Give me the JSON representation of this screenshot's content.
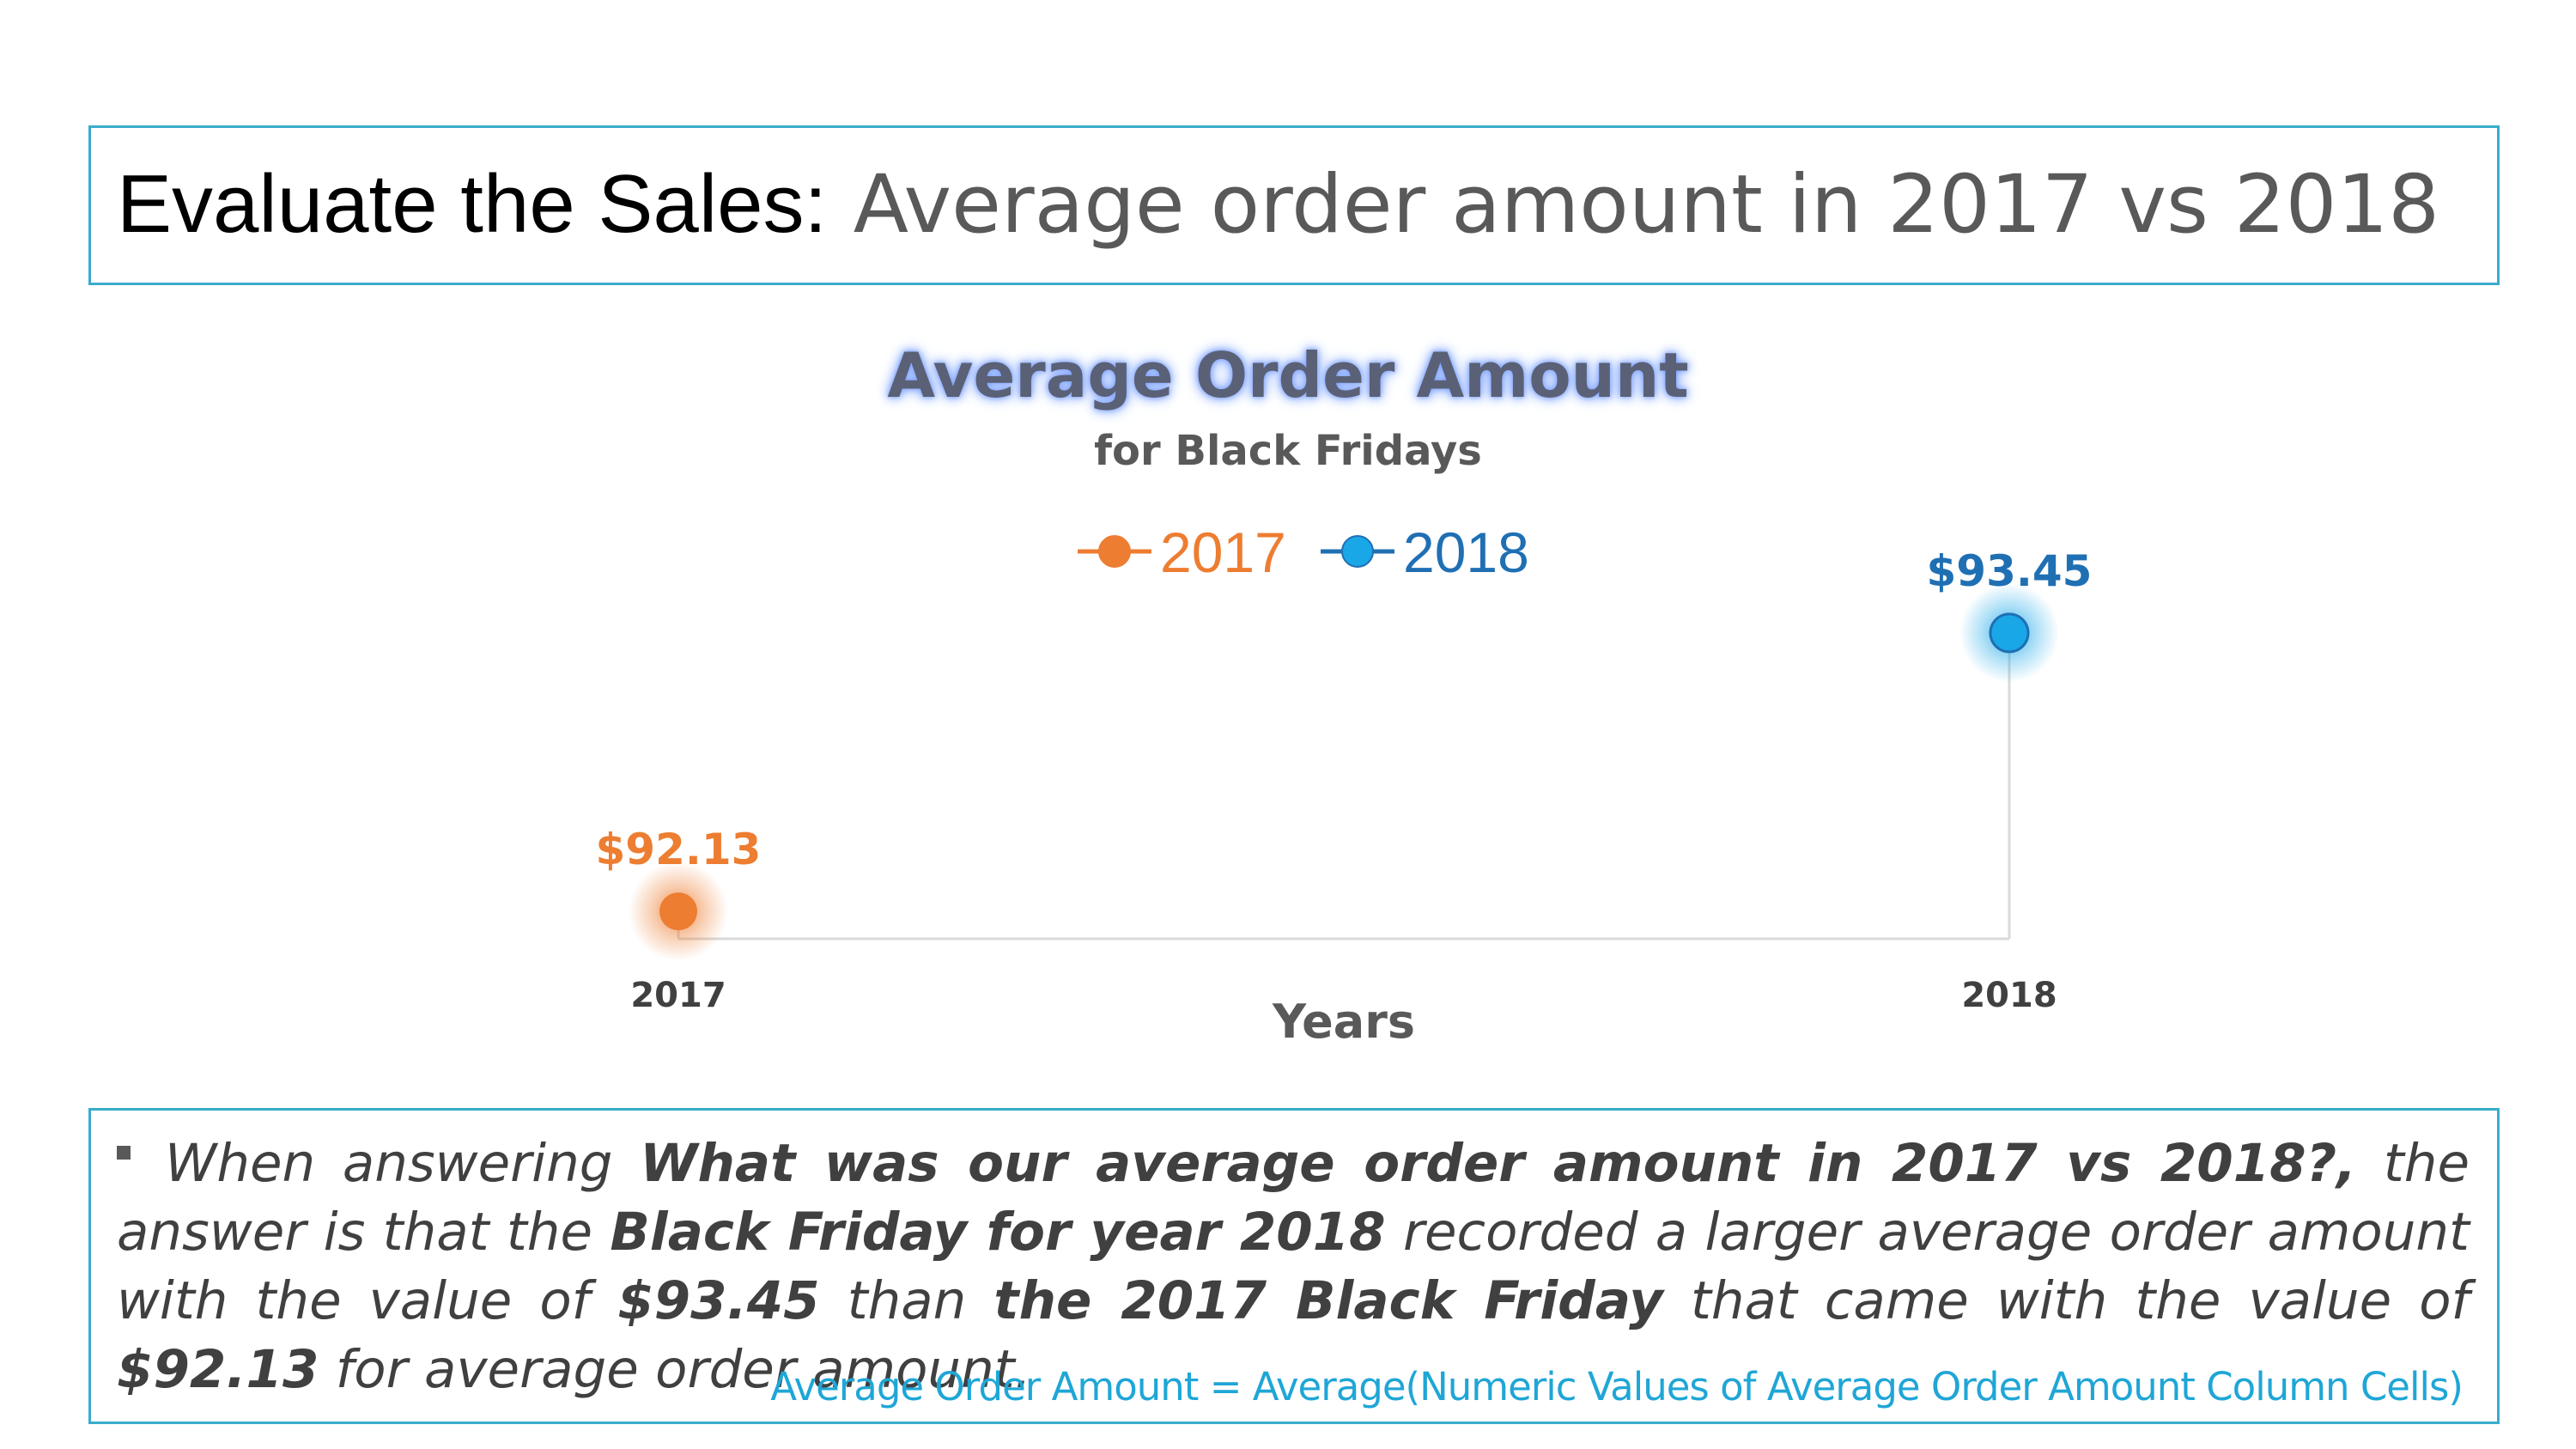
{
  "header": {
    "title_main": "Evaluate the Sales:",
    "title_sub": "Average order amount in 2017 vs 2018"
  },
  "chart_data": {
    "type": "scatter",
    "title": "Average Order Amount",
    "subtitle": "for Black Fridays",
    "xlabel": "Years",
    "categories": [
      "2017",
      "2018"
    ],
    "series": [
      {
        "name": "2017",
        "x": "2017",
        "value": 92.13,
        "label": "$92.13",
        "color": "#ed7d31"
      },
      {
        "name": "2018",
        "x": "2018",
        "value": 93.45,
        "label": "$93.45",
        "color": "#1aa7e8"
      }
    ],
    "ylim": [
      92.0,
      93.6
    ],
    "legend": "top-center",
    "grid": false
  },
  "summary": {
    "p1": "When answering ",
    "b1": "What was our average order amount in 2017 vs 2018?,",
    "p2": " the answer is that the ",
    "b2": "Black Friday for year 2018",
    "p3": " recorded a larger average order amount with the value of ",
    "b3": "$93.45",
    "p4": " than ",
    "b4": "the 2017 Black Friday",
    "p5": " that came with the value of ",
    "b5": "$92.13",
    "p6": " for average order amount.",
    "formula": "Average Order Amount = Average(Numeric Values of Average Order Amount Column Cells)"
  },
  "colors": {
    "border": "#3aaccc",
    "orange": "#ed7d31",
    "blue": "#1aa7e8",
    "blue_text": "#1f6fb3"
  }
}
